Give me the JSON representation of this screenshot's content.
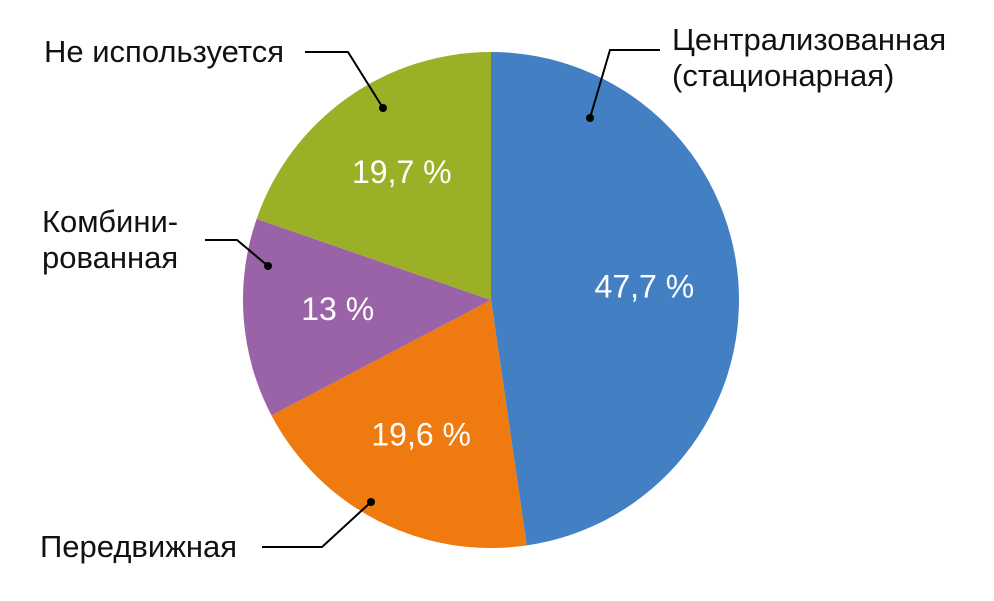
{
  "chart_data": {
    "type": "pie",
    "categories": [
      "Централизованная\n(стационарная)",
      "Передвижная",
      "Комбини-\nрованная",
      "Не используется"
    ],
    "values": [
      47.7,
      19.6,
      13,
      19.7
    ],
    "value_labels": [
      "47,7 %",
      "19,6 %",
      "13 %",
      "19,7 %"
    ],
    "colors": [
      "#4380c3",
      "#ef7a0f",
      "#9b63a7",
      "#9bb027"
    ]
  }
}
